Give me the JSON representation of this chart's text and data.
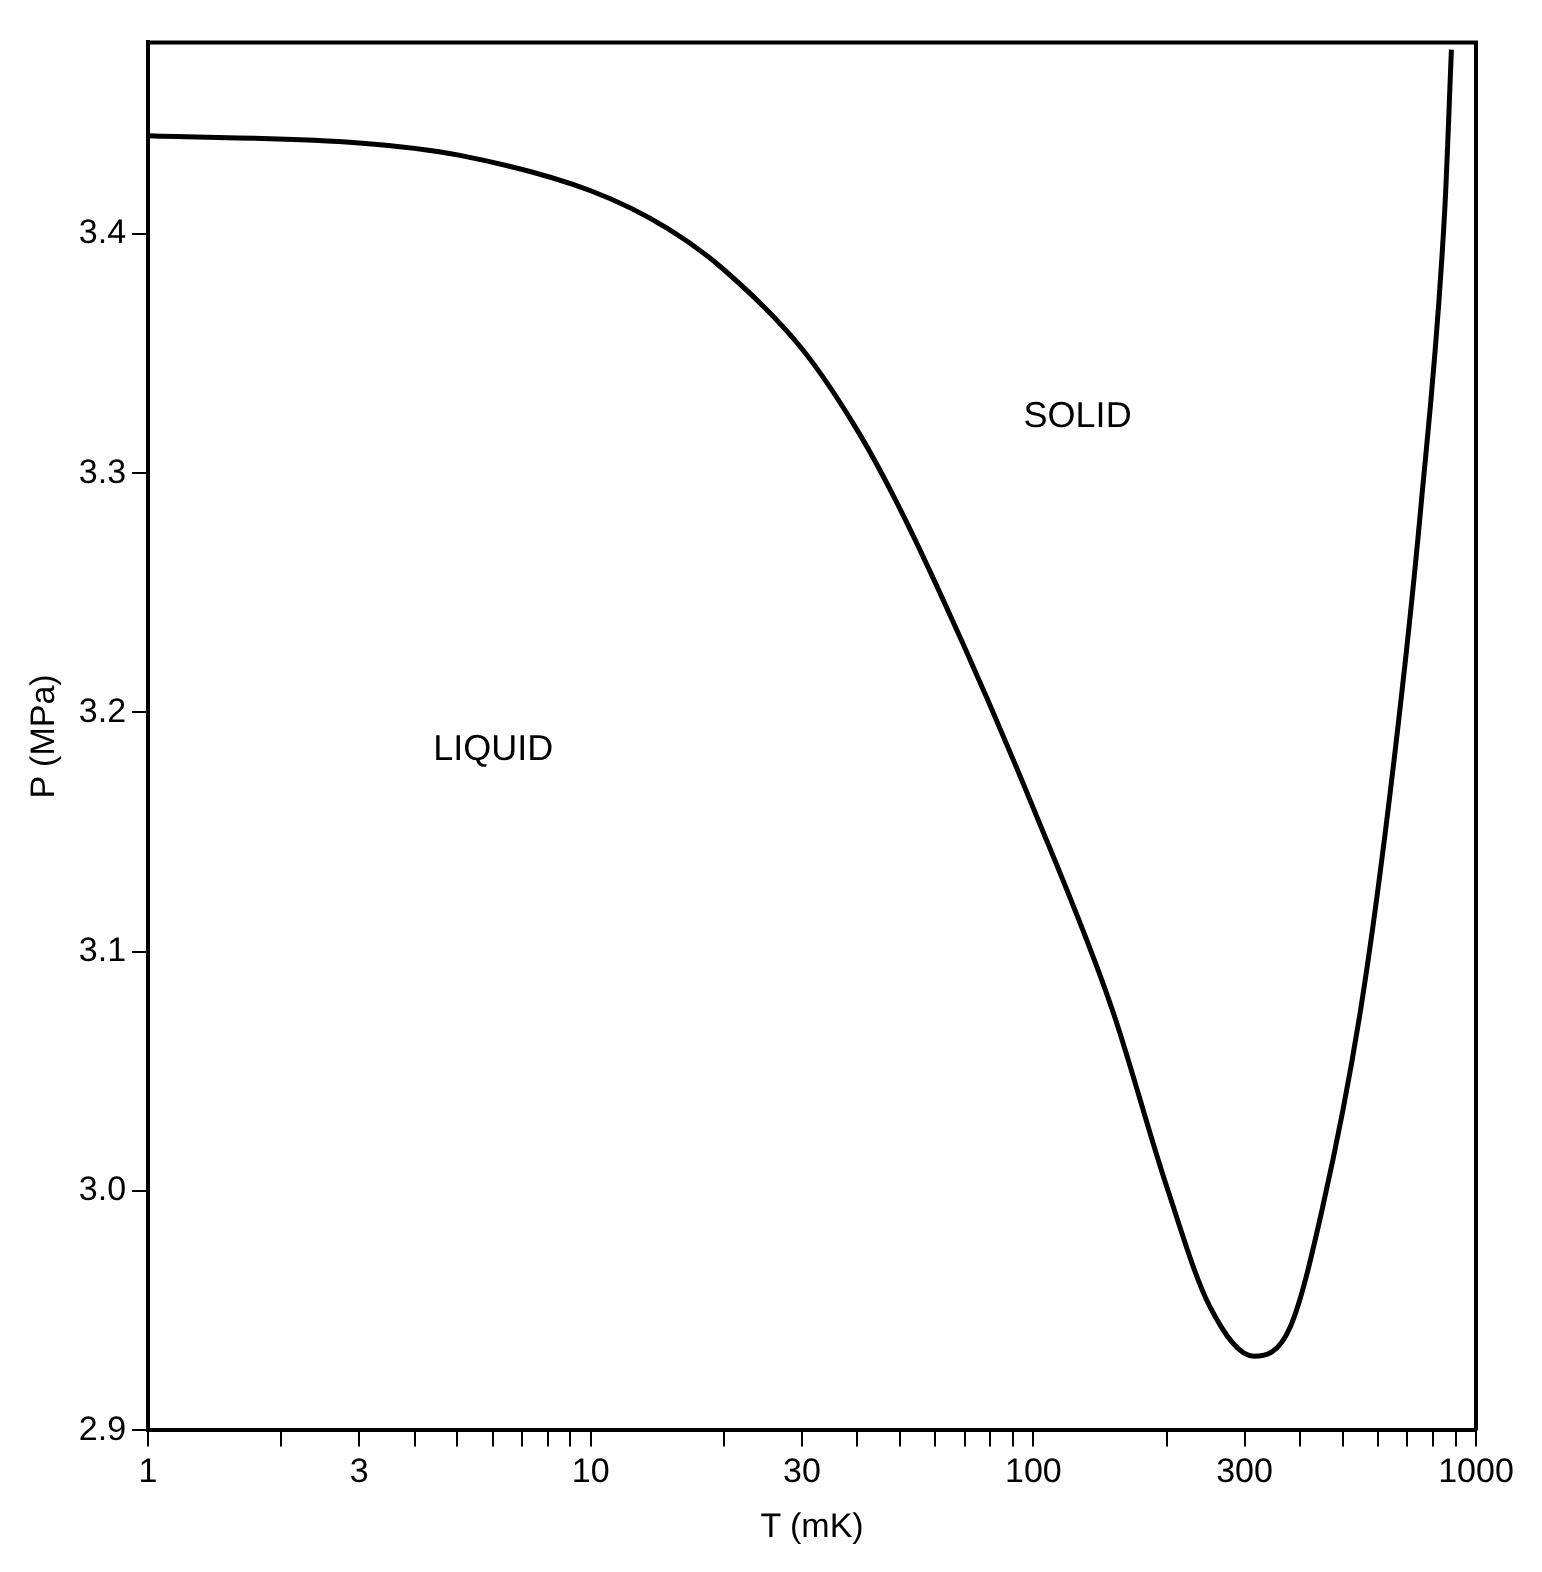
{
  "chart_data": {
    "type": "line",
    "xlabel": "T (mK)",
    "ylabel": "P (MPa)",
    "log": "x",
    "grid": false,
    "legend": false,
    "marker": "none",
    "line_style": "solid",
    "series": [
      {
        "color": "#000000",
        "x": [
          1,
          3,
          5,
          10,
          15,
          20,
          30,
          40,
          50,
          70,
          100,
          150,
          200,
          250,
          315,
          380,
          450,
          550,
          650,
          750,
          850,
          880
        ],
        "values": [
          3.441,
          3.438,
          3.433,
          3.418,
          3.402,
          3.385,
          3.352,
          3.318,
          3.285,
          3.227,
          3.16,
          3.077,
          3.002,
          2.952,
          2.931,
          2.943,
          2.993,
          3.077,
          3.177,
          3.285,
          3.41,
          3.477
        ]
      }
    ],
    "xlim": [
      1,
      1000
    ],
    "ylim": [
      2.9,
      3.48
    ],
    "xticks": [
      1,
      {
        "value": 2,
        "label": null
      },
      3,
      {
        "value": 4,
        "label": null
      },
      {
        "value": 5,
        "label": null
      },
      {
        "value": 6,
        "label": null
      },
      {
        "value": 7,
        "label": null
      },
      {
        "value": 8,
        "label": null
      },
      {
        "value": 9,
        "label": null
      },
      10,
      {
        "value": 20,
        "label": null
      },
      30,
      {
        "value": 40,
        "label": null
      },
      {
        "value": 50,
        "label": null
      },
      {
        "value": 60,
        "label": null
      },
      {
        "value": 70,
        "label": null
      },
      {
        "value": 80,
        "label": null
      },
      {
        "value": 90,
        "label": null
      },
      100,
      {
        "value": 200,
        "label": null
      },
      300,
      {
        "value": 400,
        "label": null
      },
      {
        "value": 500,
        "label": null
      },
      {
        "value": 600,
        "label": null
      },
      {
        "value": 700,
        "label": null
      },
      {
        "value": 800,
        "label": null
      },
      {
        "value": 900,
        "label": null
      },
      1000
    ],
    "yticks": [
      2.9,
      {
        "value": 3,
        "label": "3.0"
      },
      3.1,
      3.2,
      3.3,
      3.4
    ],
    "annotations": [
      "SOLID",
      "LIQUID"
    ]
  }
}
